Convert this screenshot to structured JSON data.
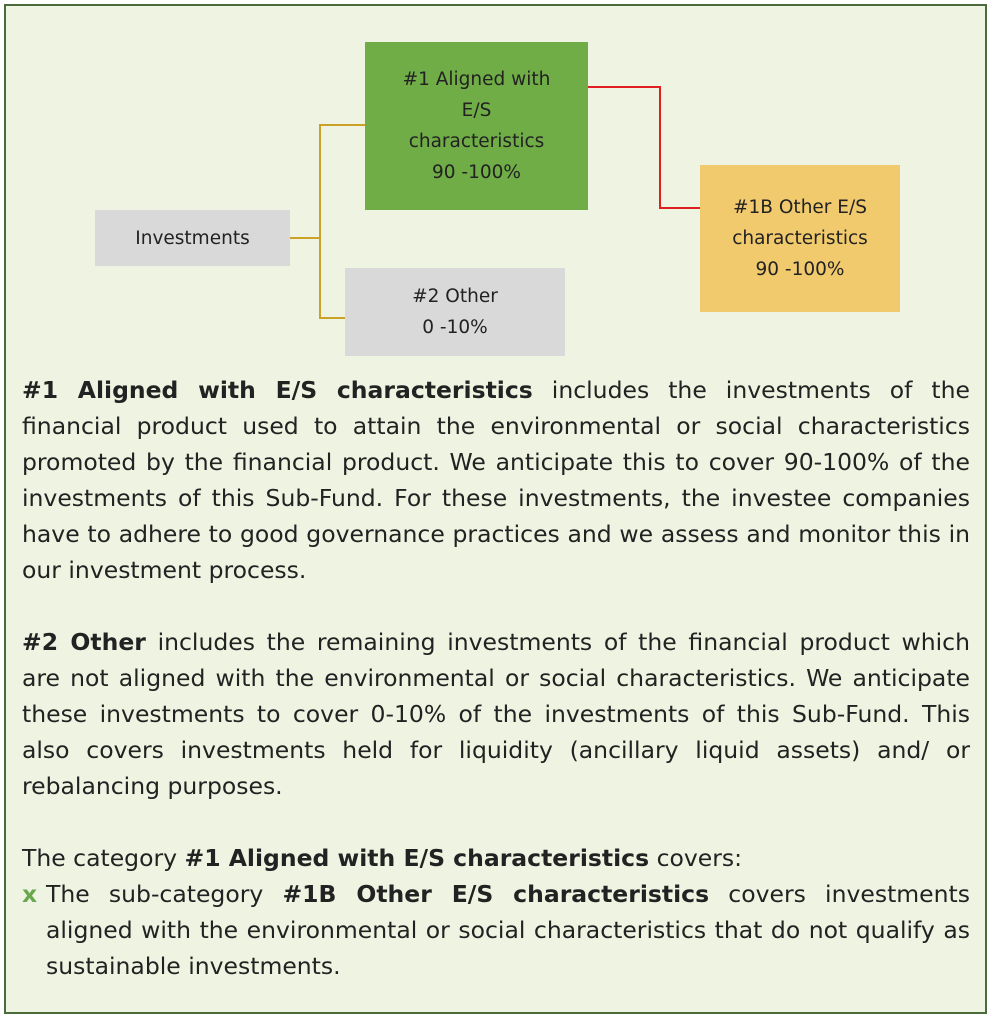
{
  "diagram": {
    "nodes": [
      {
        "id": "investments",
        "lines": [
          "Investments"
        ]
      },
      {
        "id": "aligned",
        "lines": [
          "#1 Aligned with",
          "E/S",
          "characteristics",
          "90 -100%"
        ]
      },
      {
        "id": "other",
        "lines": [
          "#2 Other",
          "0 -10%"
        ]
      },
      {
        "id": "other-es",
        "lines": [
          "#1B Other E/S",
          "characteristics",
          "90 -100%"
        ]
      }
    ]
  },
  "paragraphs": [
    {
      "parts": [
        {
          "text": "#1 Aligned with E/S characteristics",
          "bold": true
        },
        {
          "text": " includes the investments of the financial product used to attain the environmental or social characteristics promoted by the financial product. We anticipate this to cover 90-100% of the investments of this Sub-Fund. For these investments, the investee companies have to adhere to good governance practices and we assess and monitor this in our investment process.",
          "bold": false
        }
      ]
    },
    {
      "parts": [
        {
          "text": "#2 Other",
          "bold": true
        },
        {
          "text": " includes the remaining investments of the financial product which are not aligned with the environmental or social characteristics. We anticipate these investments to cover 0-10% of the investments of this Sub-Fund. This also covers investments held for liquidity (ancillary liquid assets) and/ or rebalancing purposes.",
          "bold": false
        }
      ]
    },
    {
      "parts": [
        {
          "text": "The category ",
          "bold": false
        },
        {
          "text": "#1 Aligned with E/S characteristics",
          "bold": true
        },
        {
          "text": " covers:",
          "bold": false
        }
      ]
    }
  ],
  "bullets": [
    {
      "marker": "x",
      "parts": [
        {
          "text": "The sub-category ",
          "bold": false
        },
        {
          "text": "#1B Other E/S characteristics",
          "bold": true
        },
        {
          "text": " covers investments aligned with the environmental or social characteristics that do not qualify as sustainable investments.",
          "bold": false
        }
      ]
    }
  ]
}
